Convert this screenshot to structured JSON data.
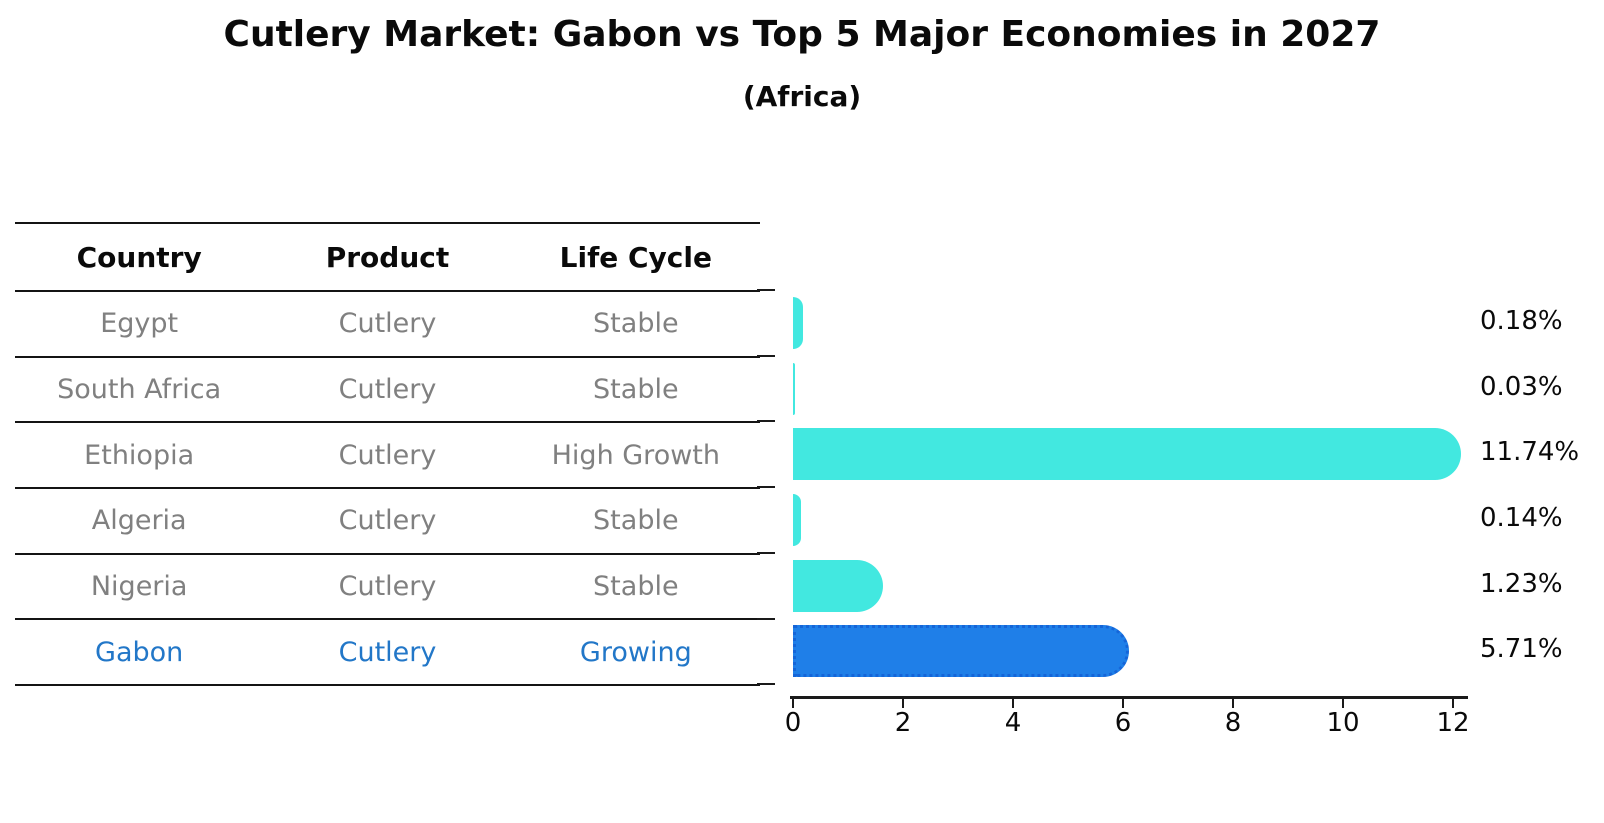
{
  "title": "Cutlery Market: Gabon vs Top 5 Major Economies in 2027",
  "subtitle": "(Africa)",
  "table": {
    "headers": [
      "Country",
      "Product",
      "Life Cycle"
    ],
    "rows": [
      {
        "country": "Egypt",
        "product": "Cutlery",
        "life_cycle": "Stable",
        "highlight": false
      },
      {
        "country": "South Africa",
        "product": "Cutlery",
        "life_cycle": "Stable",
        "highlight": false
      },
      {
        "country": "Ethiopia",
        "product": "Cutlery",
        "life_cycle": "High Growth",
        "highlight": false
      },
      {
        "country": "Algeria",
        "product": "Cutlery",
        "life_cycle": "Stable",
        "highlight": false
      },
      {
        "country": "Nigeria",
        "product": "Cutlery",
        "life_cycle": "Stable",
        "highlight": false
      },
      {
        "country": "Gabon",
        "product": "Cutlery",
        "life_cycle": "Growing",
        "highlight": true
      }
    ]
  },
  "chart_data": {
    "type": "bar",
    "orientation": "horizontal",
    "title": "Cutlery Market: Gabon vs Top 5 Major Economies in 2027 (Africa)",
    "categories": [
      "Egypt",
      "South Africa",
      "Ethiopia",
      "Algeria",
      "Nigeria",
      "Gabon"
    ],
    "values": [
      0.18,
      0.03,
      11.74,
      0.14,
      1.23,
      5.71
    ],
    "value_labels": [
      "0.18%",
      "0.03%",
      "11.74%",
      "0.14%",
      "1.23%",
      "5.71%"
    ],
    "highlight_index": 5,
    "xlim": [
      0,
      12
    ],
    "x_ticks": [
      0,
      2,
      4,
      6,
      8,
      10,
      12
    ],
    "grid": false,
    "legend": "none",
    "xlabel": "",
    "ylabel": ""
  },
  "colors": {
    "bar": "#42E8E0",
    "highlight_bar": "#1F7FE8",
    "highlight_border": "#1565D8",
    "highlight_text": "#2277C8",
    "row_text": "#808080"
  }
}
